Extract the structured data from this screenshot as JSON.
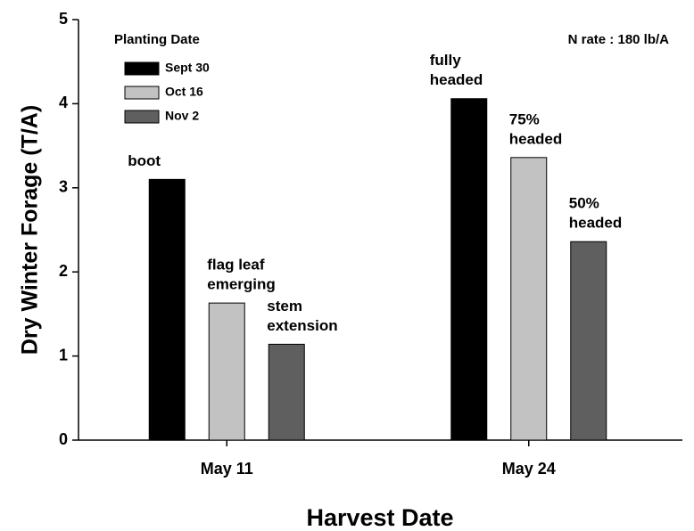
{
  "chart_data": {
    "type": "bar",
    "y_label": "Dry Winter Forage (T/A)",
    "x_label": "Harvest Date",
    "legend_title": "Planting Date",
    "note": "N rate : 180 lb/A",
    "categories": [
      "May 11",
      "May 24"
    ],
    "series": [
      {
        "name": "Sept 30",
        "color": "#000000",
        "values": [
          3.1,
          4.06
        ],
        "annotations": [
          [
            "boot"
          ],
          [
            "fully",
            "headed"
          ]
        ]
      },
      {
        "name": "Oct 16",
        "color": "#c2c2c2",
        "values": [
          1.63,
          3.36
        ],
        "annotations": [
          [
            "flag leaf",
            "emerging"
          ],
          [
            "75%",
            "headed"
          ]
        ]
      },
      {
        "name": "Nov 2",
        "color": "#5f5f5f",
        "values": [
          1.14,
          2.36
        ],
        "annotations": [
          [
            "stem",
            "extension"
          ],
          [
            "50%",
            "headed"
          ]
        ]
      }
    ],
    "ylim": [
      0,
      5
    ],
    "yticks": [
      0,
      1,
      2,
      3,
      4,
      5
    ],
    "legend": "upper left"
  }
}
